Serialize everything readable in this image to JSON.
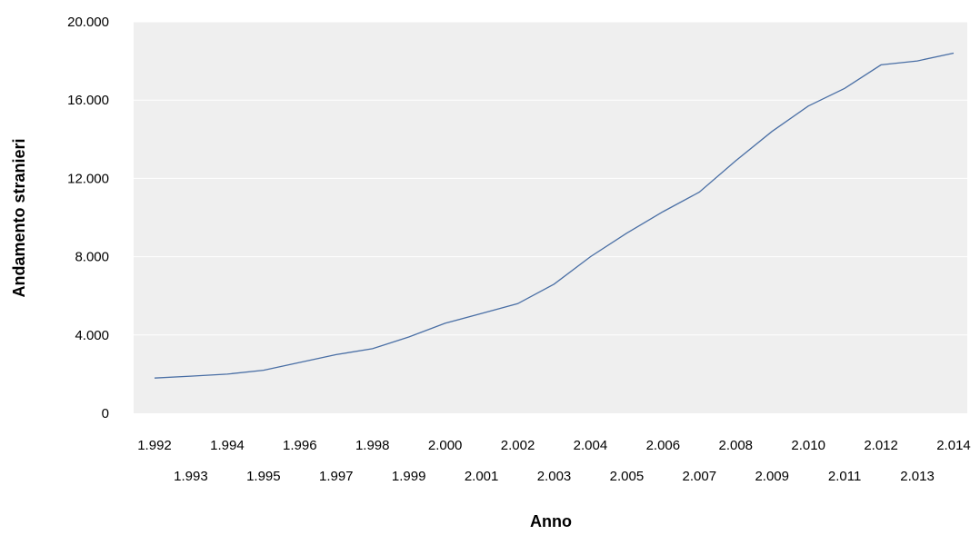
{
  "chart_data": {
    "type": "line",
    "title": "",
    "xlabel": "Anno",
    "ylabel": "Andamento stranieri",
    "x_tick_labels": [
      "1.992",
      "1.993",
      "1.994",
      "1.995",
      "1.996",
      "1.997",
      "1.998",
      "1.999",
      "2.000",
      "2.001",
      "2.002",
      "2.003",
      "2.004",
      "2.005",
      "2.006",
      "2.007",
      "2.008",
      "2.009",
      "2.010",
      "2.011",
      "2.012",
      "2.013",
      "2.014"
    ],
    "y_tick_labels": [
      "0",
      "4.000",
      "8.000",
      "12.000",
      "16.000",
      "20.000"
    ],
    "y_ticks": [
      0,
      4000,
      8000,
      12000,
      16000,
      20000
    ],
    "xlim": [
      1992,
      2014
    ],
    "ylim": [
      0,
      20000
    ],
    "grid": true,
    "line_color": "#4a6fa5",
    "plot_background": "#efefef",
    "series": [
      {
        "x": [
          1992,
          1993,
          1994,
          1995,
          1996,
          1997,
          1998,
          1999,
          2000,
          2001,
          2002,
          2003,
          2004,
          2005,
          2006,
          2007,
          2008,
          2009,
          2010,
          2011,
          2012,
          2013,
          2014
        ],
        "values": [
          1800,
          1900,
          2000,
          2200,
          2600,
          3000,
          3300,
          3900,
          4600,
          5100,
          5600,
          6600,
          8000,
          9200,
          10300,
          11300,
          12900,
          14400,
          15700,
          16600,
          17800,
          18000,
          18400
        ]
      }
    ]
  }
}
